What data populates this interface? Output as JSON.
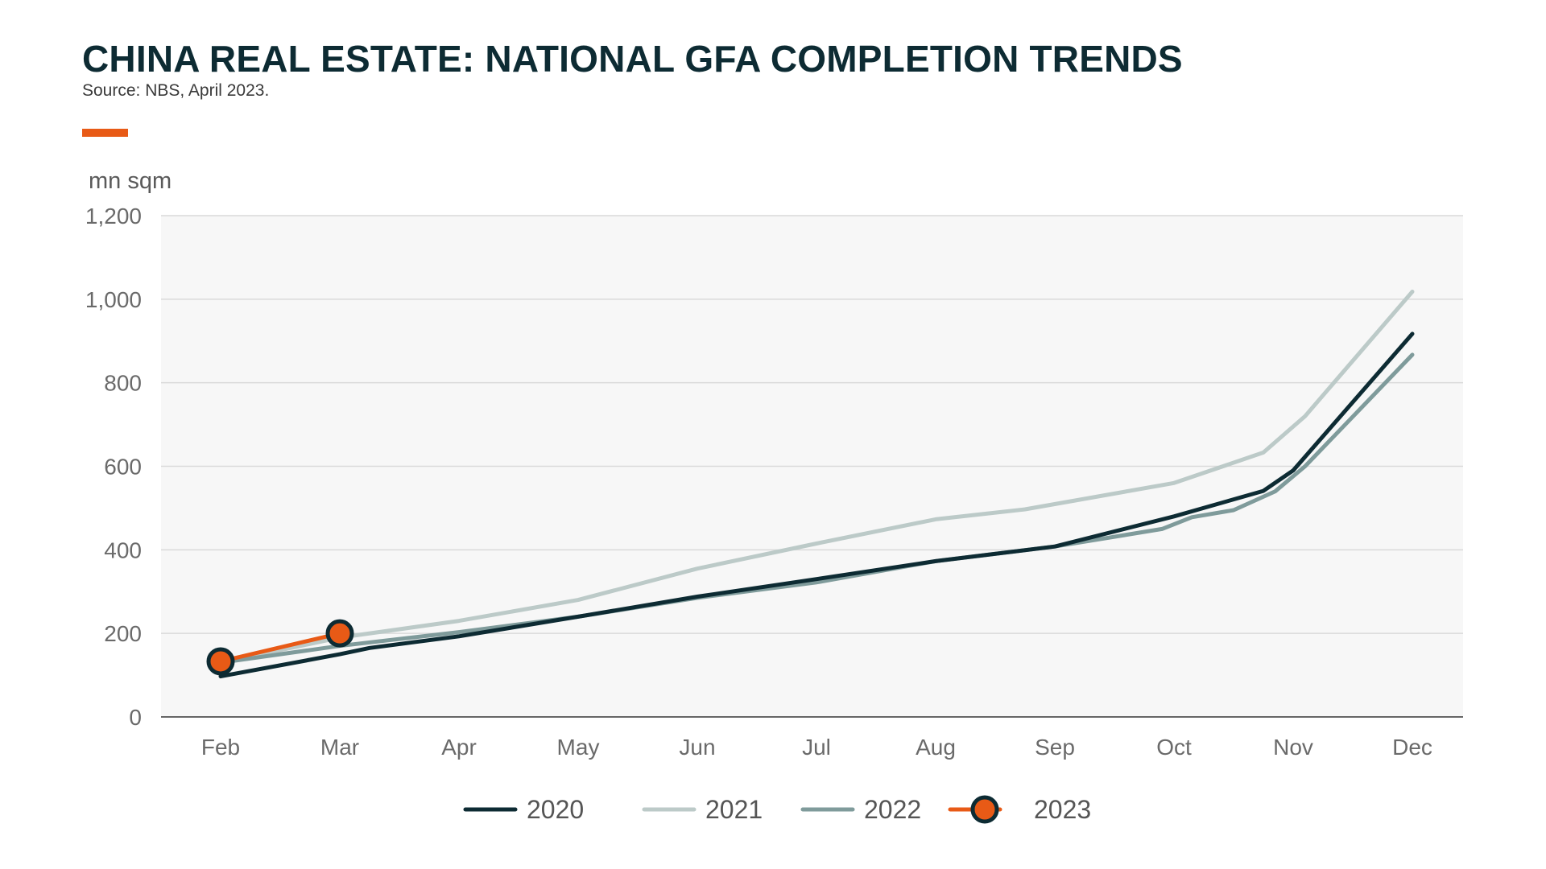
{
  "header": {
    "title": "CHINA REAL ESTATE: NATIONAL GFA COMPLETION TRENDS",
    "source": "Source: NBS, April 2023."
  },
  "colors": {
    "title": "#0d2b33",
    "accent": "#e85a16",
    "plot_background": "#f7f7f7",
    "gridline": "#dadada",
    "axis": "#666666"
  },
  "chart_data": {
    "type": "line",
    "ylabel": "mn sqm",
    "ylim": [
      0,
      1200
    ],
    "yticks": [
      0,
      200,
      400,
      600,
      800,
      1000,
      1200
    ],
    "ytick_labels": [
      "0",
      "200",
      "400",
      "600",
      "800",
      "1,000",
      "1,200"
    ],
    "categories": [
      "Feb",
      "Mar",
      "Apr",
      "May",
      "Jun",
      "Jul",
      "Aug",
      "Sep",
      "Oct",
      "Nov",
      "Dec"
    ],
    "grid": true,
    "legend_position": "bottom",
    "series": [
      {
        "name": "2020",
        "color": "#0d2b33",
        "marker": false,
        "points": [
          {
            "x": 0,
            "y": 97
          },
          {
            "x": 1,
            "y": 150
          },
          {
            "x": 1.25,
            "y": 165
          },
          {
            "x": 2,
            "y": 193
          },
          {
            "x": 3,
            "y": 240
          },
          {
            "x": 4,
            "y": 288
          },
          {
            "x": 5,
            "y": 330
          },
          {
            "x": 6,
            "y": 373
          },
          {
            "x": 7,
            "y": 408
          },
          {
            "x": 8,
            "y": 480
          },
          {
            "x": 8.75,
            "y": 541
          },
          {
            "x": 9,
            "y": 590
          },
          {
            "x": 10,
            "y": 917
          }
        ]
      },
      {
        "name": "2021",
        "color": "#bccac8",
        "marker": false,
        "points": [
          {
            "x": 0,
            "y": 130
          },
          {
            "x": 1,
            "y": 190
          },
          {
            "x": 2,
            "y": 230
          },
          {
            "x": 3,
            "y": 280
          },
          {
            "x": 4,
            "y": 355
          },
          {
            "x": 5,
            "y": 415
          },
          {
            "x": 6,
            "y": 473
          },
          {
            "x": 6.75,
            "y": 497
          },
          {
            "x": 8,
            "y": 560
          },
          {
            "x": 8.75,
            "y": 633
          },
          {
            "x": 9.1,
            "y": 720
          },
          {
            "x": 10,
            "y": 1018
          }
        ]
      },
      {
        "name": "2022",
        "color": "#7f9b9b",
        "marker": false,
        "points": [
          {
            "x": 0,
            "y": 130
          },
          {
            "x": 1,
            "y": 170
          },
          {
            "x": 2,
            "y": 203
          },
          {
            "x": 3,
            "y": 240
          },
          {
            "x": 4,
            "y": 285
          },
          {
            "x": 5,
            "y": 322
          },
          {
            "x": 6,
            "y": 373
          },
          {
            "x": 7,
            "y": 408
          },
          {
            "x": 7.9,
            "y": 450
          },
          {
            "x": 8.15,
            "y": 478
          },
          {
            "x": 8.5,
            "y": 495
          },
          {
            "x": 8.85,
            "y": 540
          },
          {
            "x": 9.1,
            "y": 600
          },
          {
            "x": 10,
            "y": 867
          }
        ]
      },
      {
        "name": "2023",
        "color": "#e85a16",
        "marker": true,
        "points": [
          {
            "x": 0,
            "y": 133
          },
          {
            "x": 1,
            "y": 200
          }
        ]
      }
    ]
  }
}
